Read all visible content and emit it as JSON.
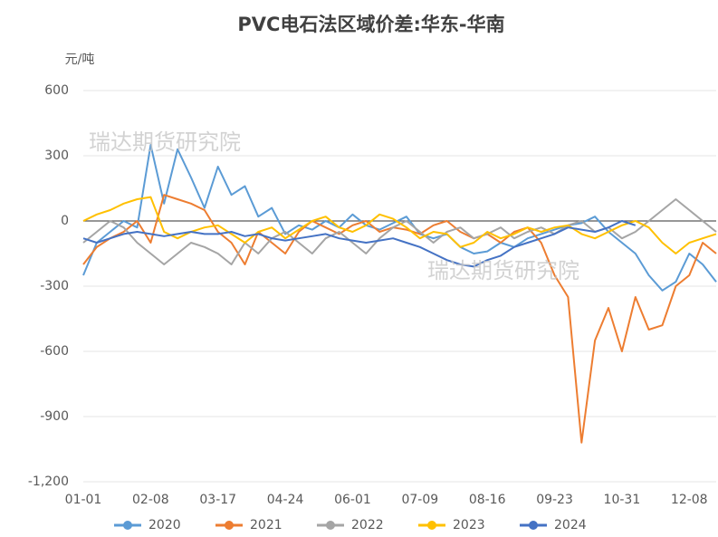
{
  "chart_data": {
    "type": "line",
    "title": "PVC电石法区域价差:华东-华南",
    "y_axis_label": "元/吨",
    "annotations": [
      "瑞达期货研究院",
      "瑞达期货研究院"
    ],
    "categories": [
      "01-01",
      null,
      null,
      null,
      null,
      "02-08",
      null,
      null,
      null,
      null,
      "03-17",
      null,
      null,
      null,
      null,
      "04-24",
      null,
      null,
      null,
      null,
      "06-01",
      null,
      null,
      null,
      null,
      "07-09",
      null,
      null,
      null,
      null,
      "08-16",
      null,
      null,
      null,
      null,
      "09-23",
      null,
      null,
      null,
      null,
      "10-31",
      null,
      null,
      null,
      null,
      "12-08",
      null,
      null
    ],
    "ylim": [
      -1200,
      600
    ],
    "yticks": [
      {
        "value": -1200,
        "label": "-1,200"
      },
      -900,
      -600,
      -300,
      0,
      300,
      600
    ],
    "grid": true,
    "legend": "bottom",
    "series": [
      {
        "name": "2020",
        "color": "#5b9bd5",
        "values": [
          -250,
          -100,
          -50,
          0,
          -30,
          350,
          80,
          330,
          200,
          60,
          250,
          120,
          160,
          20,
          60,
          -60,
          -20,
          -40,
          0,
          -30,
          30,
          -20,
          -40,
          -10,
          20,
          -60,
          -80,
          -60,
          -120,
          -150,
          -140,
          -100,
          -120,
          -80,
          -60,
          -40,
          -20,
          -10,
          20,
          -50,
          -100,
          -150,
          -250,
          -320,
          -280,
          -150,
          -200,
          -280
        ]
      },
      {
        "name": "2021",
        "color": "#ed7d31",
        "values": [
          -200,
          -120,
          -80,
          -50,
          0,
          -100,
          120,
          100,
          80,
          50,
          -50,
          -100,
          -200,
          -50,
          -100,
          -150,
          -50,
          0,
          -30,
          -60,
          -20,
          0,
          -50,
          -30,
          -40,
          -60,
          -20,
          0,
          -50,
          -80,
          -60,
          -100,
          -50,
          -30,
          -100,
          -250,
          -350,
          -1020,
          -550,
          -400,
          -600,
          -350,
          -500,
          -480,
          -300,
          -250,
          -100,
          -150
        ]
      },
      {
        "name": "2022",
        "color": "#a5a5a5",
        "values": [
          -100,
          -50,
          0,
          -30,
          -100,
          -150,
          -200,
          -150,
          -100,
          -120,
          -150,
          -200,
          -100,
          -150,
          -80,
          -50,
          -100,
          -150,
          -80,
          -50,
          -100,
          -150,
          -80,
          -30,
          0,
          -50,
          -100,
          -50,
          -30,
          -80,
          -60,
          -30,
          -80,
          -50,
          -30,
          -60,
          -20,
          0,
          -50,
          -30,
          -80,
          -50,
          0,
          50,
          100,
          50,
          0,
          -50
        ]
      },
      {
        "name": "2023",
        "color": "#ffc000",
        "values": [
          0,
          30,
          50,
          80,
          100,
          110,
          -50,
          -80,
          -50,
          -30,
          -20,
          -60,
          -100,
          -50,
          -30,
          -80,
          -40,
          0,
          20,
          -30,
          -50,
          -20,
          30,
          10,
          -30,
          -80,
          -50,
          -60,
          -120,
          -100,
          -50,
          -80,
          -60,
          -30,
          -50,
          -30,
          -20,
          -60,
          -80,
          -50,
          -20,
          0,
          -30,
          -100,
          -150,
          -100,
          -80,
          -60
        ]
      },
      {
        "name": "2024",
        "color": "#4472c4",
        "values": [
          -80,
          -100,
          -80,
          -60,
          -50,
          -60,
          -70,
          -60,
          -50,
          -60,
          -60,
          -50,
          -70,
          -60,
          -80,
          -90,
          -80,
          -70,
          -60,
          -80,
          -90,
          -100,
          -90,
          -80,
          -100,
          -120,
          -150,
          -180,
          -200,
          -210,
          -180,
          -160,
          -120,
          -100,
          -80,
          -60,
          -30,
          -40,
          -50,
          -30,
          0,
          -20,
          null,
          null,
          null,
          null,
          null,
          null
        ]
      }
    ]
  }
}
